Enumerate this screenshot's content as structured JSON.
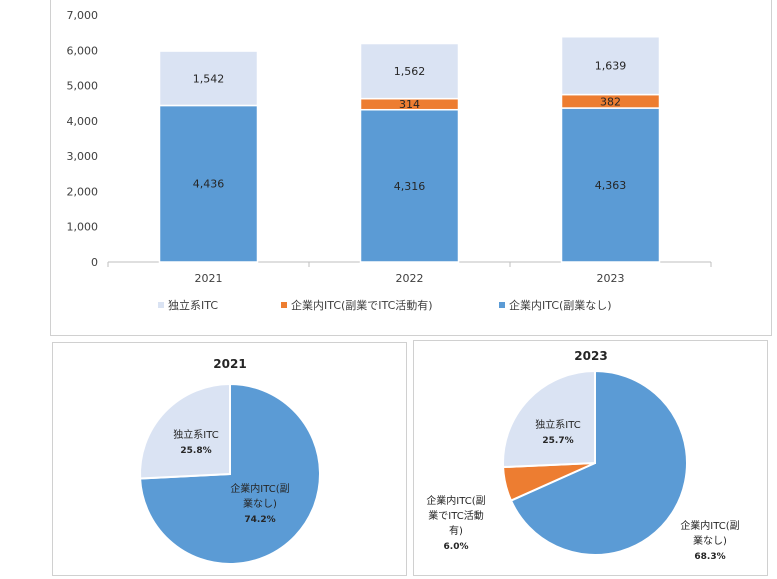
{
  "chart_data": [
    {
      "type": "bar",
      "stacked": true,
      "categories": [
        "2021",
        "2022",
        "2023"
      ],
      "series": [
        {
          "name": "企業内ITC(副業なし)",
          "values": [
            4436,
            4316,
            4363
          ],
          "color": "#5b9bd5"
        },
        {
          "name": "企業内ITC(副業でITC活動有)",
          "values": [
            0,
            314,
            382
          ],
          "color": "#ed7d31"
        },
        {
          "name": "独立系ITC",
          "values": [
            1542,
            1562,
            1639
          ],
          "color": "#dae3f3"
        }
      ],
      "data_labels": [
        [
          "4,436",
          "4,316",
          "4,363"
        ],
        [
          "",
          "314",
          "382"
        ],
        [
          "1,542",
          "1,562",
          "1,639"
        ]
      ],
      "yticks": [
        "0",
        "1,000",
        "2,000",
        "3,000",
        "4,000",
        "5,000",
        "6,000",
        "7,000"
      ],
      "ylim": [
        0,
        7000
      ],
      "legend": [
        "独立系ITC",
        "企業内ITC(副業でITC活動有)",
        "企業内ITC(副業なし)"
      ],
      "legend_position": "bottom",
      "grid": false,
      "title": "",
      "xlabel": "",
      "ylabel": ""
    },
    {
      "type": "pie",
      "title": "2021",
      "slices": [
        {
          "name": "独立系ITC",
          "value": 25.8,
          "label_lines": [
            "独立系ITC",
            "25.8%"
          ],
          "color": "#dae3f3"
        },
        {
          "name": "企業内ITC(副業なし)",
          "value": 74.2,
          "label_lines": [
            "企業内ITC(副",
            "業なし)",
            "74.2%"
          ],
          "color": "#5b9bd5"
        }
      ]
    },
    {
      "type": "pie",
      "title": "2023",
      "slices": [
        {
          "name": "独立系ITC",
          "value": 25.7,
          "label_lines": [
            "独立系ITC",
            "25.7%"
          ],
          "color": "#dae3f3"
        },
        {
          "name": "企業内ITC(副業なし)",
          "value": 68.3,
          "label_lines": [
            "企業内ITC(副",
            "業なし)",
            "68.3%"
          ],
          "color": "#5b9bd5"
        },
        {
          "name": "企業内ITC(副業でITC活動有)",
          "value": 6.0,
          "label_lines": [
            "企業内ITC(副",
            "業でITC活動",
            "有)",
            "6.0%"
          ],
          "color": "#ed7d31"
        }
      ]
    }
  ]
}
